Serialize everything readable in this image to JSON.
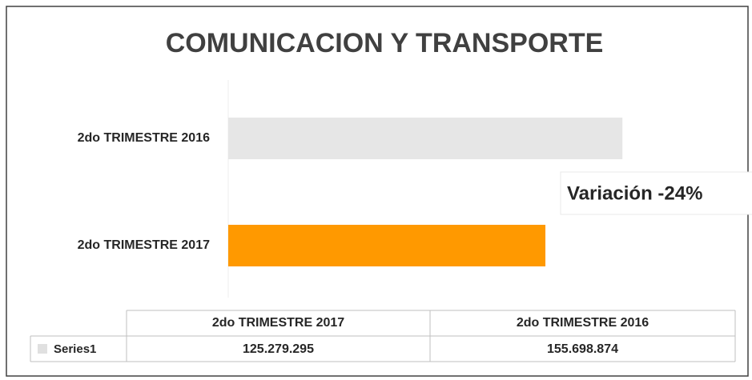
{
  "chart_data": {
    "type": "bar",
    "orientation": "horizontal",
    "title": "COMUNICACION Y TRANSPORTE",
    "categories": [
      "2do TRIMESTRE 2017",
      "2do TRIMESTRE 2016"
    ],
    "series": [
      {
        "name": "Series1",
        "colors": [
          "#ff9900",
          "#e6e6e6"
        ],
        "values": [
          125279295,
          155698874
        ],
        "value_labels": [
          "125.279.295",
          "155.698.874"
        ]
      }
    ],
    "xlim": [
      0,
      180000000
    ],
    "annotation": "Variación -24%",
    "data_table": true
  }
}
